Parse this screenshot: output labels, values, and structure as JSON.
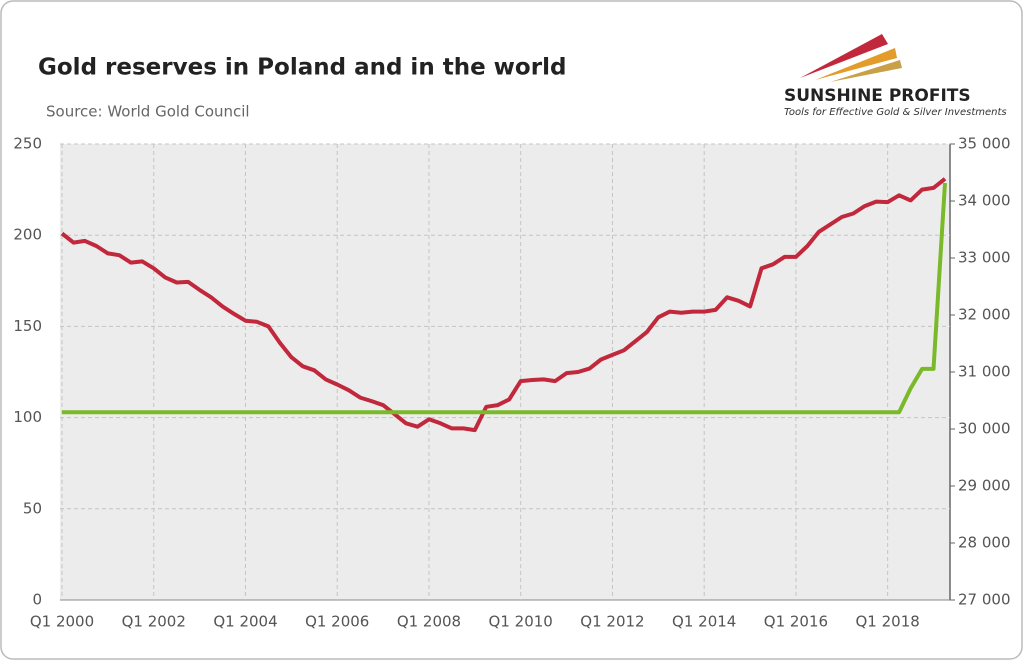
{
  "chart_data": {
    "type": "line",
    "title": "Gold reserves in Poland and in the world",
    "subtitle": "Source: World Gold Council",
    "categories": [
      "Q1 2000",
      null,
      null,
      null,
      null,
      null,
      null,
      null,
      "Q1 2002",
      null,
      null,
      null,
      null,
      null,
      null,
      null,
      "Q1 2004",
      null,
      null,
      null,
      null,
      null,
      null,
      null,
      "Q1 2006",
      null,
      null,
      null,
      null,
      null,
      null,
      null,
      "Q1 2008",
      null,
      null,
      null,
      null,
      null,
      null,
      null,
      "Q1 2010",
      null,
      null,
      null,
      null,
      null,
      null,
      null,
      "Q1 2012",
      null,
      null,
      null,
      null,
      null,
      null,
      null,
      "Q1 2014",
      null,
      null,
      null,
      null,
      null,
      null,
      null,
      "Q1 2016",
      null,
      null,
      null,
      null,
      null,
      null,
      null,
      "Q1 2018",
      null,
      null,
      null,
      null,
      null
    ],
    "series": [
      {
        "color": "#c1283c",
        "axis": "y2",
        "values": [
          33430,
          33270,
          33300,
          33210,
          33080,
          33050,
          32920,
          32940,
          32820,
          32660,
          32570,
          32580,
          32440,
          32310,
          32150,
          32020,
          31900,
          31880,
          31800,
          31510,
          31260,
          31100,
          31030,
          30870,
          30780,
          30680,
          30550,
          30490,
          30420,
          30260,
          30100,
          30040,
          30170,
          30100,
          30010,
          30010,
          29980,
          30390,
          30420,
          30520,
          30840,
          30860,
          30870,
          30840,
          30980,
          31000,
          31060,
          31220,
          31300,
          31380,
          31540,
          31700,
          31960,
          32060,
          32040,
          32060,
          32060,
          32090,
          32310,
          32250,
          32150,
          32820,
          32890,
          33020,
          33020,
          33210,
          33460,
          33590,
          33720,
          33780,
          33910,
          33990,
          33980,
          34100,
          34010,
          34200,
          34230,
          34390
        ]
      },
      {
        "color": "#7ab929",
        "values": [
          102.9,
          102.9,
          102.9,
          102.9,
          102.9,
          102.9,
          102.9,
          102.9,
          102.9,
          102.9,
          102.9,
          102.9,
          102.9,
          102.9,
          102.9,
          102.9,
          102.9,
          102.9,
          102.9,
          102.9,
          102.9,
          102.9,
          102.9,
          102.9,
          102.9,
          102.9,
          102.9,
          102.9,
          102.9,
          102.9,
          102.9,
          102.9,
          102.9,
          102.9,
          102.9,
          102.9,
          102.9,
          102.9,
          102.9,
          102.9,
          102.9,
          102.9,
          102.9,
          102.9,
          102.9,
          102.9,
          102.9,
          102.9,
          102.9,
          102.9,
          102.9,
          102.9,
          102.9,
          102.9,
          102.9,
          102.9,
          102.9,
          102.9,
          102.9,
          102.9,
          102.9,
          102.9,
          102.9,
          102.9,
          102.9,
          102.9,
          102.9,
          102.9,
          102.9,
          102.9,
          102.9,
          102.9,
          102.9,
          102.9,
          116,
          126.7,
          126.7,
          228.6
        ]
      }
    ],
    "ylim": [
      0,
      250
    ],
    "yticks": [
      0,
      50,
      100,
      150,
      200,
      250
    ],
    "y2lim": [
      27000,
      35000
    ],
    "y2ticks": [
      {
        "value": 27000,
        "label": "27 000"
      },
      {
        "value": 28000,
        "label": "28 000"
      },
      {
        "value": 29000,
        "label": "29 000"
      },
      {
        "value": 30000,
        "label": "30 000"
      },
      {
        "value": 31000,
        "label": "31 000"
      },
      {
        "value": 32000,
        "label": "32 000"
      },
      {
        "value": 33000,
        "label": "33 000"
      },
      {
        "value": 34000,
        "label": "34 000"
      },
      {
        "value": 35000,
        "label": "35 000"
      }
    ],
    "grid": true
  },
  "logo": {
    "name": "SUNSHINE PROFITS",
    "tagline": "Tools for Effective Gold & Silver Investments"
  }
}
